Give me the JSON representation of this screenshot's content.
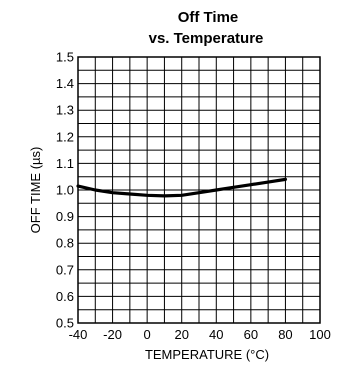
{
  "chart_data": {
    "type": "line",
    "title_line1": "Off Time",
    "title_line2": "vs. Temperature",
    "xlabel": "TEMPERATURE (°C)",
    "ylabel": "OFF TIME (µs)",
    "xlim": [
      -40,
      100
    ],
    "ylim": [
      0.5,
      1.5
    ],
    "x_ticks": [
      -40,
      -20,
      0,
      20,
      40,
      60,
      80,
      100
    ],
    "x_tick_labels": [
      "-40",
      "-20",
      "0",
      "20",
      "40",
      "60",
      "80",
      "100"
    ],
    "y_ticks": [
      0.5,
      0.6,
      0.7,
      0.8,
      0.9,
      1.0,
      1.1,
      1.2,
      1.3,
      1.4,
      1.5
    ],
    "y_tick_labels": [
      "0.5",
      "0.6",
      "0.7",
      "0.8",
      "0.9",
      "1.0",
      "1.1",
      "1.2",
      "1.3",
      "1.4",
      "1.5"
    ],
    "grid": true,
    "series": [
      {
        "x": [
          -40,
          -30,
          -20,
          -10,
          0,
          10,
          20,
          30,
          40,
          50,
          60,
          70,
          80
        ],
        "y": [
          1.015,
          1.0,
          0.99,
          0.985,
          0.98,
          0.978,
          0.98,
          0.99,
          1.0,
          1.01,
          1.02,
          1.03,
          1.04
        ]
      }
    ],
    "colors": {
      "line": "#000000",
      "grid": "#000000",
      "background": "#ffffff"
    }
  }
}
